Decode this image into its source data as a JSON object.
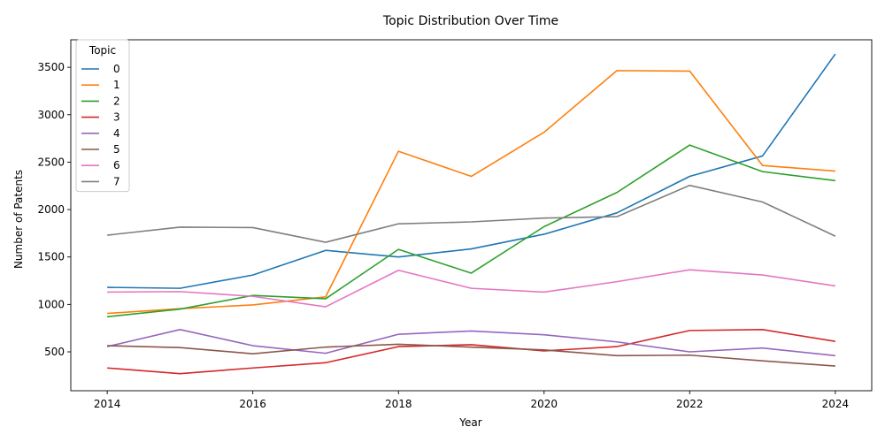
{
  "chart_data": {
    "type": "line",
    "title": "Topic Distribution Over Time",
    "xlabel": "Year",
    "ylabel": "Number of Patents",
    "x": [
      2014,
      2015,
      2016,
      2017,
      2018,
      2019,
      2020,
      2021,
      2022,
      2023,
      2024
    ],
    "xlim": [
      2013.5,
      2024.5
    ],
    "ylim": [
      90,
      3790
    ],
    "xticks": [
      2014,
      2016,
      2018,
      2020,
      2022,
      2024
    ],
    "yticks": [
      500,
      1000,
      1500,
      2000,
      2500,
      3000,
      3500
    ],
    "grid": false,
    "legend": {
      "title": "Topic",
      "placement": "top-left"
    },
    "series": [
      {
        "name": "0",
        "color": "#1f77b4",
        "values": [
          1180,
          1170,
          1310,
          1570,
          1500,
          1585,
          1740,
          1965,
          2350,
          2565,
          3640
        ]
      },
      {
        "name": "1",
        "color": "#ff7f0e",
        "values": [
          905,
          955,
          995,
          1080,
          2615,
          2350,
          2815,
          3465,
          3460,
          2465,
          2405
        ]
      },
      {
        "name": "2",
        "color": "#2ca02c",
        "values": [
          870,
          950,
          1095,
          1060,
          1580,
          1330,
          1820,
          2180,
          2680,
          2400,
          2305
        ]
      },
      {
        "name": "3",
        "color": "#d62728",
        "values": [
          330,
          270,
          330,
          385,
          555,
          575,
          510,
          555,
          725,
          735,
          610
        ]
      },
      {
        "name": "4",
        "color": "#9467bd",
        "values": [
          555,
          735,
          565,
          485,
          685,
          720,
          680,
          605,
          500,
          540,
          460
        ]
      },
      {
        "name": "5",
        "color": "#8c564b",
        "values": [
          565,
          545,
          480,
          550,
          580,
          550,
          520,
          460,
          465,
          405,
          350
        ]
      },
      {
        "name": "6",
        "color": "#e377c2",
        "values": [
          1130,
          1135,
          1085,
          975,
          1360,
          1170,
          1130,
          1240,
          1365,
          1310,
          1195
        ]
      },
      {
        "name": "7",
        "color": "#7f7f7f",
        "values": [
          1730,
          1815,
          1810,
          1655,
          1850,
          1870,
          1910,
          1925,
          2255,
          2080,
          1720
        ]
      }
    ]
  }
}
